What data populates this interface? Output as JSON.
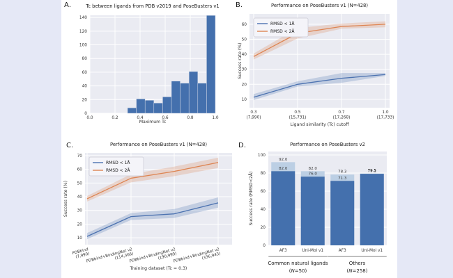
{
  "palette": {
    "page_bg": "#e5e8f6",
    "card_bg": "#ffffff",
    "plot_bg": "#eaebf2",
    "grid": "#ffffff",
    "blue_line": "#4c72b0",
    "orange_line": "#dd8452",
    "dark_bar": "#4470ad",
    "light_bar": "#bccfe4",
    "bar_edge": "#d5dbe8",
    "title_text": "#1a1a1a",
    "tick_text": "#333333",
    "value_label": "#3a3a3a"
  },
  "chart_data": [
    {
      "panel_letter": "A.",
      "type": "histogram",
      "title": "Tc between ligands from PDB v2019 and PoseBusters v1",
      "xlabel": "Maximum Tc",
      "ylabel": "",
      "xlim": [
        0.0,
        1.0
      ],
      "ylim": [
        0,
        150
      ],
      "xticks": [
        0.0,
        0.2,
        0.4,
        0.6,
        0.8,
        1.0
      ],
      "yticks": [
        0,
        20,
        40,
        60,
        80,
        100,
        120,
        140
      ],
      "bin_start": 0.3,
      "bin_width": 0.07,
      "values": [
        8,
        21,
        19,
        15,
        24,
        47,
        44,
        61,
        44,
        143
      ]
    },
    {
      "panel_letter": "B.",
      "type": "line",
      "title": "Performance on PoseBusters v1 (N=428)",
      "xlabel": "Ligand similarity (Tc) cutoff",
      "ylabel": "Success rate (%)",
      "yticks": [
        10,
        20,
        30,
        40,
        50,
        60
      ],
      "xtick_labels": [
        [
          "0.3",
          "(7,990)"
        ],
        [
          "0.5",
          "(15,731)"
        ],
        [
          "0.7",
          "(17,268)"
        ],
        [
          "1.0",
          "(17,733)"
        ]
      ],
      "legend": [
        "RMSD < 1Å",
        "RMSD < 2Å"
      ],
      "series": [
        {
          "name": "RMSD < 1Å",
          "color": "#4c72b0",
          "values": [
            11.4,
            20,
            24,
            26.5
          ],
          "lower": [
            9.5,
            18.5,
            21,
            25.5
          ],
          "upper": [
            13.5,
            22,
            27.5,
            27.5
          ]
        },
        {
          "name": "RMSD < 2Å",
          "color": "#dd8452",
          "values": [
            38.5,
            54,
            58.5,
            60
          ],
          "lower": [
            36.5,
            50.5,
            57,
            58
          ],
          "upper": [
            40.5,
            57.5,
            60.5,
            62
          ]
        }
      ]
    },
    {
      "panel_letter": "C.",
      "type": "line",
      "title": "Performance on PoseBusters v1 (N=428)",
      "xlabel": "Training dataset (Tc = 0.3)",
      "ylabel": "Success rate (%)",
      "yticks": [
        10,
        20,
        30,
        40,
        50,
        60,
        70
      ],
      "xtick_labels": [
        [
          "PDBbind",
          "(7,990)"
        ],
        [
          "PDBbind+BindingNet v2",
          "(114,366)"
        ],
        [
          "PDBbind+BindingNet v2",
          "(190,999)"
        ],
        [
          "PDBbind+BindingNet v2",
          "(336,943)"
        ]
      ],
      "xtick_rotation": -15,
      "legend": [
        "RMSD < 1Å",
        "RMSD < 2Å"
      ],
      "series": [
        {
          "name": "RMSD < 1Å",
          "color": "#4c72b0",
          "values": [
            11,
            25.5,
            27.5,
            35.5
          ],
          "lower": [
            9,
            23,
            24.5,
            32
          ],
          "upper": [
            13.5,
            28,
            31,
            39.5
          ]
        },
        {
          "name": "RMSD < 2Å",
          "color": "#dd8452",
          "values": [
            38.5,
            53.5,
            58.5,
            65
          ],
          "lower": [
            36.5,
            50.5,
            55,
            61
          ],
          "upper": [
            40.5,
            56.5,
            62,
            68.5
          ]
        }
      ]
    },
    {
      "panel_letter": "D.",
      "type": "bar",
      "title": "Performance on PoseBusters v2",
      "ylabel": "Success rate (RMSD<2Å)",
      "yticks": [
        0,
        20,
        40,
        60,
        80,
        100
      ],
      "bars": [
        {
          "tick": "AF3",
          "light": 92.0,
          "dark": 82.0
        },
        {
          "tick": "Uni-Mol v1",
          "light": 82.0,
          "dark": 76.0
        },
        {
          "tick": "AF3",
          "light": 78.3,
          "dark": 71.3
        },
        {
          "tick": "Uni-Mol v1",
          "light": 79.5,
          "dark": 79.1
        }
      ],
      "groups": [
        {
          "label": "Common natural ligands",
          "sub": "(N=50)"
        },
        {
          "label": "Others",
          "sub": "(N=258)"
        }
      ]
    }
  ]
}
